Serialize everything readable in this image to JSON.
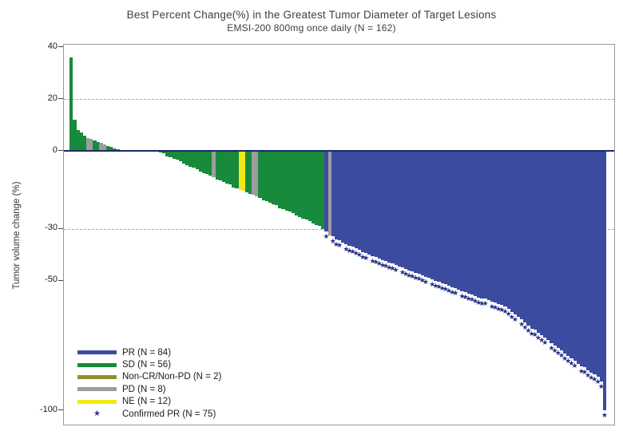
{
  "chart_data": {
    "type": "bar",
    "subtype": "waterfall",
    "title": "Best Percent Change(%) in the Greatest Tumor Diameter of Target Lesions",
    "subtitle": "EMSI-200 800mg once daily (N = 162)",
    "ylabel": "Tumor volume change (%)",
    "yticks": [
      40,
      20,
      0,
      -30,
      -50,
      -100
    ],
    "ylim": [
      -106,
      41
    ],
    "reference_lines_dashed": [
      20,
      -30
    ],
    "zero_line": 0,
    "grid": "horizontal dashed at +20 and -30 only",
    "legend_position": "bottom-left inside plot",
    "n_total": 162,
    "legend": [
      {
        "code": "PR",
        "label": "PR (N = 84)",
        "color": "#3b4ca0",
        "marker": "line"
      },
      {
        "code": "SD",
        "label": "SD (N = 56)",
        "color": "#188a3b",
        "marker": "line"
      },
      {
        "code": "NCR",
        "label": "Non-CR/Non-PD (N = 2)",
        "color": "#8f8f28",
        "marker": "line"
      },
      {
        "code": "PD",
        "label": "PD (N = 8)",
        "color": "#9d9d9d",
        "marker": "line"
      },
      {
        "code": "NE",
        "label": "NE (N = 12)",
        "color": "#f2e816",
        "marker": "line"
      },
      {
        "code": "STAR",
        "label": "Confirmed PR (N = 75)",
        "color": "#253288",
        "marker": "star"
      }
    ],
    "star_marker_glyph": "★",
    "bars_format": [
      "percent_change",
      "category_code",
      "confirmed_pr_star"
    ],
    "bars": [
      [
        36,
        "SD",
        0
      ],
      [
        12,
        "SD",
        0
      ],
      [
        8,
        "SD",
        0
      ],
      [
        7,
        "SD",
        0
      ],
      [
        6,
        "SD",
        0
      ],
      [
        5,
        "PD",
        0
      ],
      [
        4.5,
        "PD",
        0
      ],
      [
        4,
        "SD",
        0
      ],
      [
        3.5,
        "SD",
        0
      ],
      [
        3,
        "PD",
        0
      ],
      [
        2.5,
        "PD",
        0
      ],
      [
        2,
        "SD",
        0
      ],
      [
        1.5,
        "SD",
        0
      ],
      [
        1,
        "SD",
        0
      ],
      [
        0.5,
        "SD",
        0
      ],
      [
        0,
        "NE",
        0
      ],
      [
        0,
        "NE",
        0
      ],
      [
        0,
        "NCR",
        0
      ],
      [
        0,
        "NE",
        0
      ],
      [
        0,
        "NE",
        0
      ],
      [
        0,
        "NE",
        0
      ],
      [
        0,
        "NE",
        0
      ],
      [
        0,
        "NCR",
        0
      ],
      [
        0,
        "NE",
        0
      ],
      [
        0,
        "NE",
        0
      ],
      [
        0,
        "NE",
        0
      ],
      [
        0,
        "NE",
        0
      ],
      [
        -0.5,
        "SD",
        0
      ],
      [
        -1,
        "SD",
        0
      ],
      [
        -2,
        "SD",
        0
      ],
      [
        -2.5,
        "SD",
        0
      ],
      [
        -3,
        "SD",
        0
      ],
      [
        -3.5,
        "SD",
        0
      ],
      [
        -4,
        "SD",
        0
      ],
      [
        -5,
        "SD",
        0
      ],
      [
        -5.5,
        "SD",
        0
      ],
      [
        -6,
        "SD",
        0
      ],
      [
        -6.5,
        "SD",
        0
      ],
      [
        -7,
        "SD",
        0
      ],
      [
        -8,
        "SD",
        0
      ],
      [
        -8.5,
        "SD",
        0
      ],
      [
        -9,
        "SD",
        0
      ],
      [
        -9.5,
        "SD",
        0
      ],
      [
        -10,
        "PD",
        0
      ],
      [
        -11,
        "SD",
        0
      ],
      [
        -11.5,
        "SD",
        0
      ],
      [
        -12,
        "SD",
        0
      ],
      [
        -12.5,
        "SD",
        0
      ],
      [
        -13,
        "SD",
        0
      ],
      [
        -14,
        "SD",
        0
      ],
      [
        -14.5,
        "SD",
        0
      ],
      [
        -15,
        "NE",
        0
      ],
      [
        -15.5,
        "NE",
        0
      ],
      [
        -16,
        "SD",
        0
      ],
      [
        -16.5,
        "SD",
        0
      ],
      [
        -17,
        "PD",
        0
      ],
      [
        -17.5,
        "PD",
        0
      ],
      [
        -18,
        "SD",
        0
      ],
      [
        -19,
        "SD",
        0
      ],
      [
        -19.5,
        "SD",
        0
      ],
      [
        -20,
        "SD",
        0
      ],
      [
        -20.5,
        "SD",
        0
      ],
      [
        -21,
        "SD",
        0
      ],
      [
        -22,
        "SD",
        0
      ],
      [
        -22.5,
        "SD",
        0
      ],
      [
        -23,
        "SD",
        0
      ],
      [
        -23.5,
        "SD",
        0
      ],
      [
        -24,
        "SD",
        0
      ],
      [
        -25,
        "SD",
        0
      ],
      [
        -25.5,
        "SD",
        0
      ],
      [
        -26,
        "SD",
        0
      ],
      [
        -26.5,
        "SD",
        0
      ],
      [
        -27,
        "SD",
        0
      ],
      [
        -28,
        "SD",
        0
      ],
      [
        -28.5,
        "SD",
        0
      ],
      [
        -29,
        "SD",
        0
      ],
      [
        -30,
        "SD",
        0
      ],
      [
        -31,
        "PR",
        1
      ],
      [
        -32.5,
        "PD",
        0
      ],
      [
        -33,
        "PR",
        1
      ],
      [
        -34,
        "PR",
        1
      ],
      [
        -34.5,
        "PR",
        1
      ],
      [
        -35.5,
        "PR",
        0
      ],
      [
        -36,
        "PR",
        1
      ],
      [
        -36.5,
        "PR",
        1
      ],
      [
        -37,
        "PR",
        1
      ],
      [
        -37.5,
        "PR",
        1
      ],
      [
        -38,
        "PR",
        1
      ],
      [
        -39,
        "PR",
        1
      ],
      [
        -39.5,
        "PR",
        1
      ],
      [
        -40,
        "PR",
        0
      ],
      [
        -40.5,
        "PR",
        1
      ],
      [
        -41,
        "PR",
        1
      ],
      [
        -41.5,
        "PR",
        1
      ],
      [
        -42,
        "PR",
        1
      ],
      [
        -42.5,
        "PR",
        1
      ],
      [
        -43,
        "PR",
        1
      ],
      [
        -43.5,
        "PR",
        1
      ],
      [
        -44,
        "PR",
        1
      ],
      [
        -44.5,
        "PR",
        0
      ],
      [
        -45,
        "PR",
        1
      ],
      [
        -45.5,
        "PR",
        1
      ],
      [
        -46,
        "PR",
        1
      ],
      [
        -46.5,
        "PR",
        1
      ],
      [
        -47,
        "PR",
        1
      ],
      [
        -47.5,
        "PR",
        1
      ],
      [
        -48,
        "PR",
        1
      ],
      [
        -48.5,
        "PR",
        1
      ],
      [
        -49,
        "PR",
        0
      ],
      [
        -49.5,
        "PR",
        1
      ],
      [
        -50,
        "PR",
        1
      ],
      [
        -50.5,
        "PR",
        1
      ],
      [
        -51,
        "PR",
        1
      ],
      [
        -51.5,
        "PR",
        1
      ],
      [
        -52,
        "PR",
        1
      ],
      [
        -52.5,
        "PR",
        1
      ],
      [
        -53,
        "PR",
        1
      ],
      [
        -53.5,
        "PR",
        0
      ],
      [
        -54,
        "PR",
        1
      ],
      [
        -54.5,
        "PR",
        1
      ],
      [
        -55,
        "PR",
        1
      ],
      [
        -55.5,
        "PR",
        1
      ],
      [
        -56,
        "PR",
        1
      ],
      [
        -56.5,
        "PR",
        1
      ],
      [
        -57,
        "PR",
        1
      ],
      [
        -57,
        "PR",
        1
      ],
      [
        -57.5,
        "PR",
        0
      ],
      [
        -58,
        "PR",
        1
      ],
      [
        -58.5,
        "PR",
        1
      ],
      [
        -59,
        "PR",
        1
      ],
      [
        -59.5,
        "PR",
        1
      ],
      [
        -60,
        "PR",
        1
      ],
      [
        -61,
        "PR",
        1
      ],
      [
        -62,
        "PR",
        1
      ],
      [
        -63,
        "PR",
        1
      ],
      [
        -64,
        "PR",
        0
      ],
      [
        -65,
        "PR",
        1
      ],
      [
        -66,
        "PR",
        1
      ],
      [
        -67.5,
        "PR",
        1
      ],
      [
        -68.5,
        "PR",
        1
      ],
      [
        -69,
        "PR",
        1
      ],
      [
        -70,
        "PR",
        1
      ],
      [
        -71,
        "PR",
        1
      ],
      [
        -72,
        "PR",
        1
      ],
      [
        -73,
        "PR",
        0
      ],
      [
        -74,
        "PR",
        1
      ],
      [
        -75,
        "PR",
        1
      ],
      [
        -76,
        "PR",
        1
      ],
      [
        -77,
        "PR",
        1
      ],
      [
        -78,
        "PR",
        1
      ],
      [
        -79,
        "PR",
        1
      ],
      [
        -80,
        "PR",
        1
      ],
      [
        -81,
        "PR",
        1
      ],
      [
        -82,
        "PR",
        0
      ],
      [
        -83,
        "PR",
        1
      ],
      [
        -83.5,
        "PR",
        1
      ],
      [
        -84.5,
        "PR",
        1
      ],
      [
        -85.5,
        "PR",
        1
      ],
      [
        -86,
        "PR",
        1
      ],
      [
        -87,
        "PR",
        1
      ],
      [
        -89,
        "PR",
        1
      ],
      [
        -100,
        "PR",
        1
      ]
    ],
    "colors": {
      "zero_line": "#1b2a63",
      "reference_line": "#a9a9a9",
      "frame": "#999999",
      "star": "#253288"
    }
  }
}
